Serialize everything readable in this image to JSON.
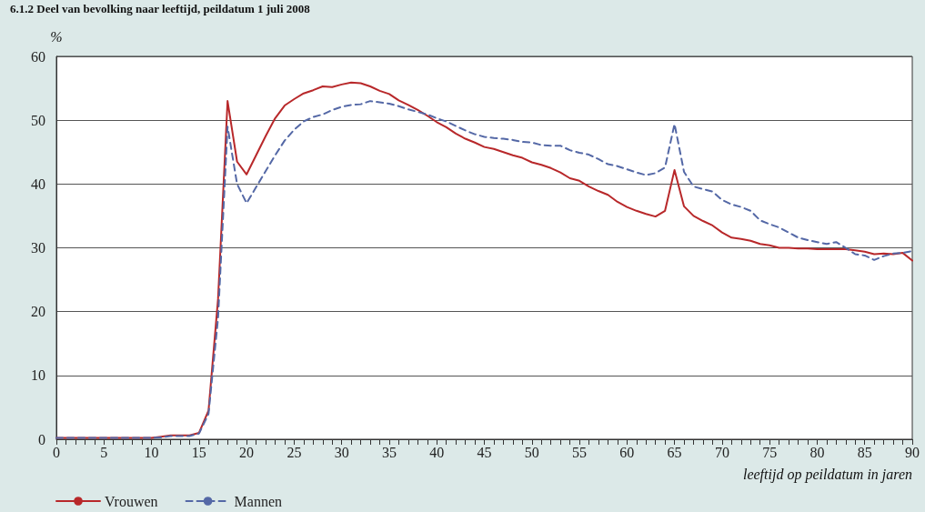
{
  "chart_data": {
    "type": "line",
    "title": "6.1.2 Deel van bevolking naar leeftijd, peildatum 1 juli 2008",
    "ylabel": "%",
    "xlabel": "leeftijd op peildatum in jaren",
    "x": [
      0,
      1,
      2,
      3,
      4,
      5,
      6,
      7,
      8,
      9,
      10,
      11,
      12,
      13,
      14,
      15,
      16,
      17,
      18,
      19,
      20,
      21,
      22,
      23,
      24,
      25,
      26,
      27,
      28,
      29,
      30,
      31,
      32,
      33,
      34,
      35,
      36,
      37,
      38,
      39,
      40,
      41,
      42,
      43,
      44,
      45,
      46,
      47,
      48,
      49,
      50,
      51,
      52,
      53,
      54,
      55,
      56,
      57,
      58,
      59,
      60,
      61,
      62,
      63,
      64,
      65,
      66,
      67,
      68,
      69,
      70,
      71,
      72,
      73,
      74,
      75,
      76,
      77,
      78,
      79,
      80,
      81,
      82,
      83,
      84,
      85,
      86,
      87,
      88,
      89,
      90
    ],
    "series": [
      {
        "name": "Vrouwen",
        "color": "#b8282a",
        "line_style": "solid",
        "values": [
          0.2,
          0.2,
          0.2,
          0.2,
          0.2,
          0.2,
          0.2,
          0.2,
          0.2,
          0.2,
          0.2,
          0.4,
          0.6,
          0.6,
          0.6,
          1,
          4.5,
          22,
          53,
          43.5,
          41.5,
          44.5,
          47.5,
          50.3,
          52.3,
          53.3,
          54.2,
          54.7,
          55.3,
          55.2,
          55.6,
          55.9,
          55.8,
          55.3,
          54.6,
          54.1,
          53.1,
          52.4,
          51.6,
          50.7,
          49.7,
          48.9,
          47.9,
          47.1,
          46.5,
          45.8,
          45.5,
          45,
          44.5,
          44.1,
          43.4,
          43,
          42.5,
          41.8,
          40.9,
          40.5,
          39.6,
          38.9,
          38.3,
          37.2,
          36.4,
          35.8,
          35.3,
          34.9,
          35.8,
          42.2,
          36.5,
          35,
          34.2,
          33.5,
          32.4,
          31.6,
          31.4,
          31.1,
          30.6,
          30.4,
          30,
          30,
          29.9,
          29.9,
          29.8,
          29.8,
          29.8,
          29.8,
          29.6,
          29.4,
          29,
          29.1,
          29,
          29.2,
          28
        ]
      },
      {
        "name": "Mannen",
        "color": "#5468a6",
        "line_style": "dashed",
        "values": [
          0.2,
          0.2,
          0.2,
          0.2,
          0.2,
          0.2,
          0.2,
          0.2,
          0.2,
          0.2,
          0.2,
          0.3,
          0.5,
          0.5,
          0.5,
          0.9,
          4,
          19,
          49,
          40,
          37,
          39.5,
          42,
          44.5,
          46.8,
          48.5,
          49.8,
          50.5,
          50.9,
          51.6,
          52.1,
          52.4,
          52.5,
          53,
          52.8,
          52.6,
          52.2,
          51.7,
          51.3,
          50.9,
          50.3,
          49.8,
          49.1,
          48.4,
          47.8,
          47.4,
          47.2,
          47.1,
          46.9,
          46.6,
          46.5,
          46.1,
          46,
          46,
          45.3,
          44.9,
          44.6,
          43.9,
          43.1,
          42.8,
          42.3,
          41.8,
          41.4,
          41.7,
          42.6,
          49.4,
          41.9,
          39.6,
          39.2,
          38.8,
          37.5,
          36.8,
          36.4,
          35.8,
          34.3,
          33.7,
          33.2,
          32.4,
          31.6,
          31.2,
          30.9,
          30.6,
          30.9,
          30,
          29,
          28.8,
          28.1,
          28.7,
          29.1,
          29.2,
          29.5
        ]
      }
    ],
    "xlim": [
      0,
      90
    ],
    "xticks": [
      0,
      5,
      10,
      15,
      20,
      25,
      30,
      35,
      40,
      45,
      50,
      55,
      60,
      65,
      70,
      75,
      80,
      85,
      90
    ],
    "ylim": [
      0,
      60
    ],
    "yticks": [
      0,
      10,
      20,
      30,
      40,
      50,
      60
    ],
    "grid": "y",
    "legend": "bottom left",
    "marker": "none"
  }
}
